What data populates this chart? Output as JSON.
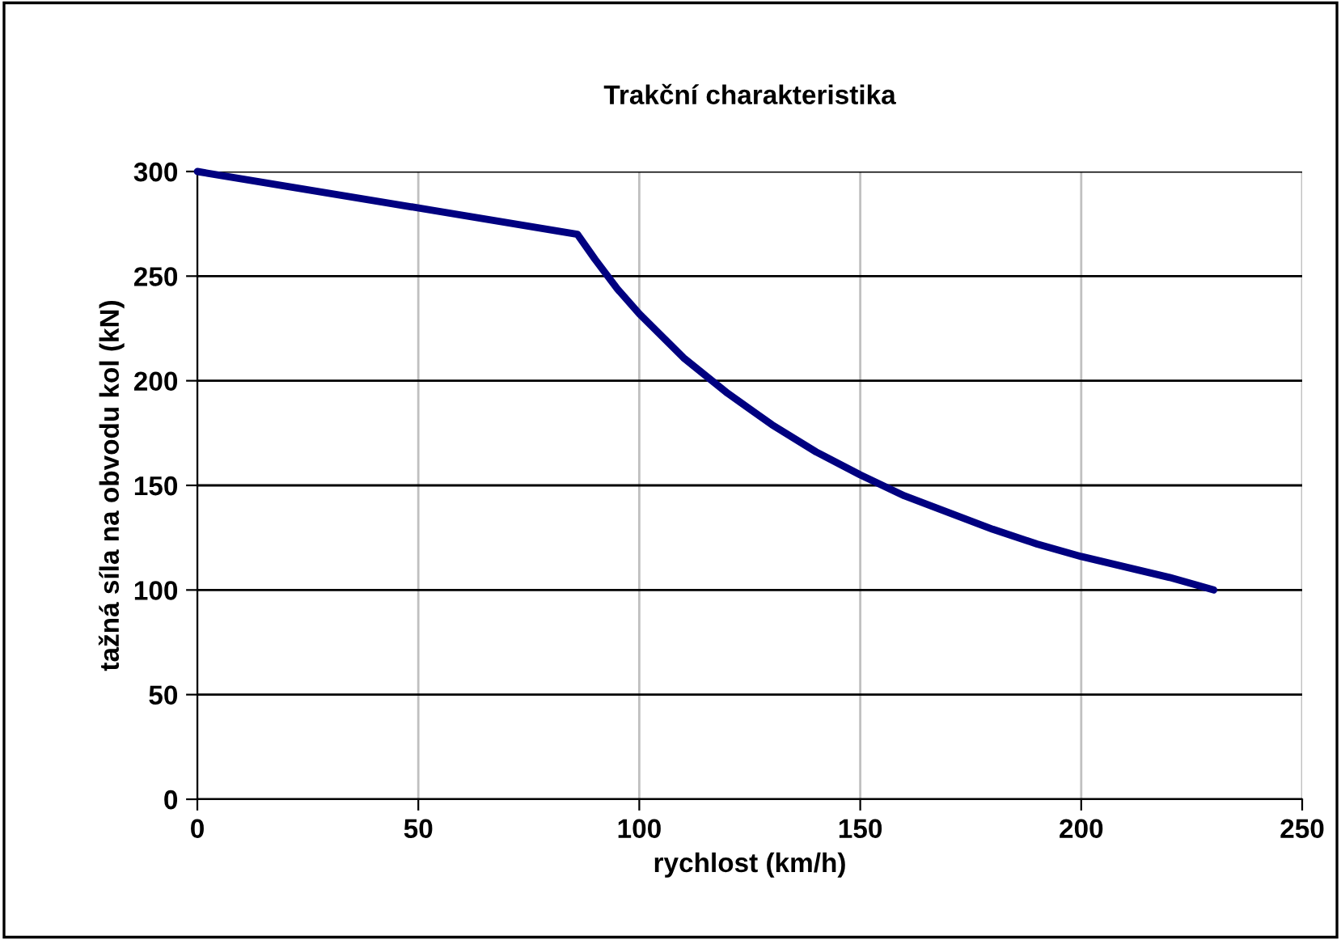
{
  "chart_data": {
    "type": "line",
    "title": "Trakční charakteristika",
    "xlabel": "rychlost (km/h)",
    "ylabel": "tažná síla na obvodu kol (kN)",
    "series": [
      {
        "color": "#000080",
        "x": [
          0,
          86,
          90,
          95,
          100,
          110,
          120,
          130,
          140,
          150,
          160,
          170,
          180,
          190,
          200,
          210,
          220,
          230
        ],
        "values": [
          300,
          270,
          258,
          244,
          232,
          211,
          194,
          179,
          166,
          155,
          145,
          137,
          129,
          122,
          116,
          111,
          106,
          100
        ]
      }
    ],
    "xlim": [
      0,
      250
    ],
    "xticks": [
      0,
      50,
      100,
      150,
      200,
      250
    ],
    "ylim": [
      0,
      300
    ],
    "yticks": [
      0,
      50,
      100,
      150,
      200,
      250,
      300
    ],
    "grid": true,
    "legend": false,
    "marker": "none",
    "line_style": "solid"
  }
}
